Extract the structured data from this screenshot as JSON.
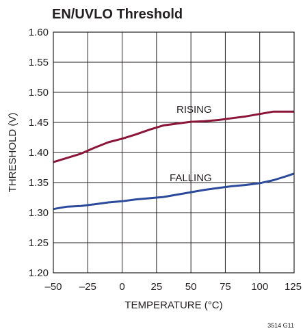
{
  "chart_data": {
    "type": "line",
    "title": "EN/UVLO Threshold",
    "xlabel": "TEMPERATURE (°C)",
    "ylabel": "THRESHOLD (V)",
    "xlim": [
      -50,
      125
    ],
    "ylim": [
      1.2,
      1.6
    ],
    "xticks": [
      -50,
      -25,
      0,
      25,
      50,
      75,
      100,
      125
    ],
    "xtick_labels": [
      "–50",
      "–25",
      "0",
      "25",
      "50",
      "75",
      "100",
      "125"
    ],
    "yticks": [
      1.2,
      1.25,
      1.3,
      1.35,
      1.4,
      1.45,
      1.5,
      1.55,
      1.6
    ],
    "ytick_labels": [
      "1.20",
      "1.25",
      "1.30",
      "1.35",
      "1.40",
      "1.45",
      "1.50",
      "1.55",
      "1.60"
    ],
    "grid": true,
    "legend": "none",
    "series": [
      {
        "name": "RISING",
        "color": "#8b1538",
        "x": [
          -50,
          -40,
          -30,
          -20,
          -10,
          0,
          10,
          20,
          30,
          40,
          50,
          60,
          70,
          80,
          90,
          100,
          110,
          120,
          125
        ],
        "y": [
          1.384,
          1.391,
          1.398,
          1.408,
          1.417,
          1.423,
          1.43,
          1.438,
          1.445,
          1.448,
          1.451,
          1.452,
          1.454,
          1.457,
          1.46,
          1.464,
          1.468,
          1.468,
          1.468
        ]
      },
      {
        "name": "FALLING",
        "color": "#2b4a9b",
        "x": [
          -50,
          -40,
          -30,
          -20,
          -10,
          0,
          10,
          20,
          30,
          40,
          50,
          60,
          70,
          80,
          90,
          100,
          110,
          120,
          125
        ],
        "y": [
          1.306,
          1.31,
          1.311,
          1.314,
          1.317,
          1.319,
          1.322,
          1.324,
          1.326,
          1.33,
          1.334,
          1.338,
          1.341,
          1.344,
          1.346,
          1.349,
          1.354,
          1.361,
          1.365
        ]
      }
    ],
    "annotations": [
      "RISING",
      "FALLING"
    ],
    "footnote": "3514 G11"
  }
}
